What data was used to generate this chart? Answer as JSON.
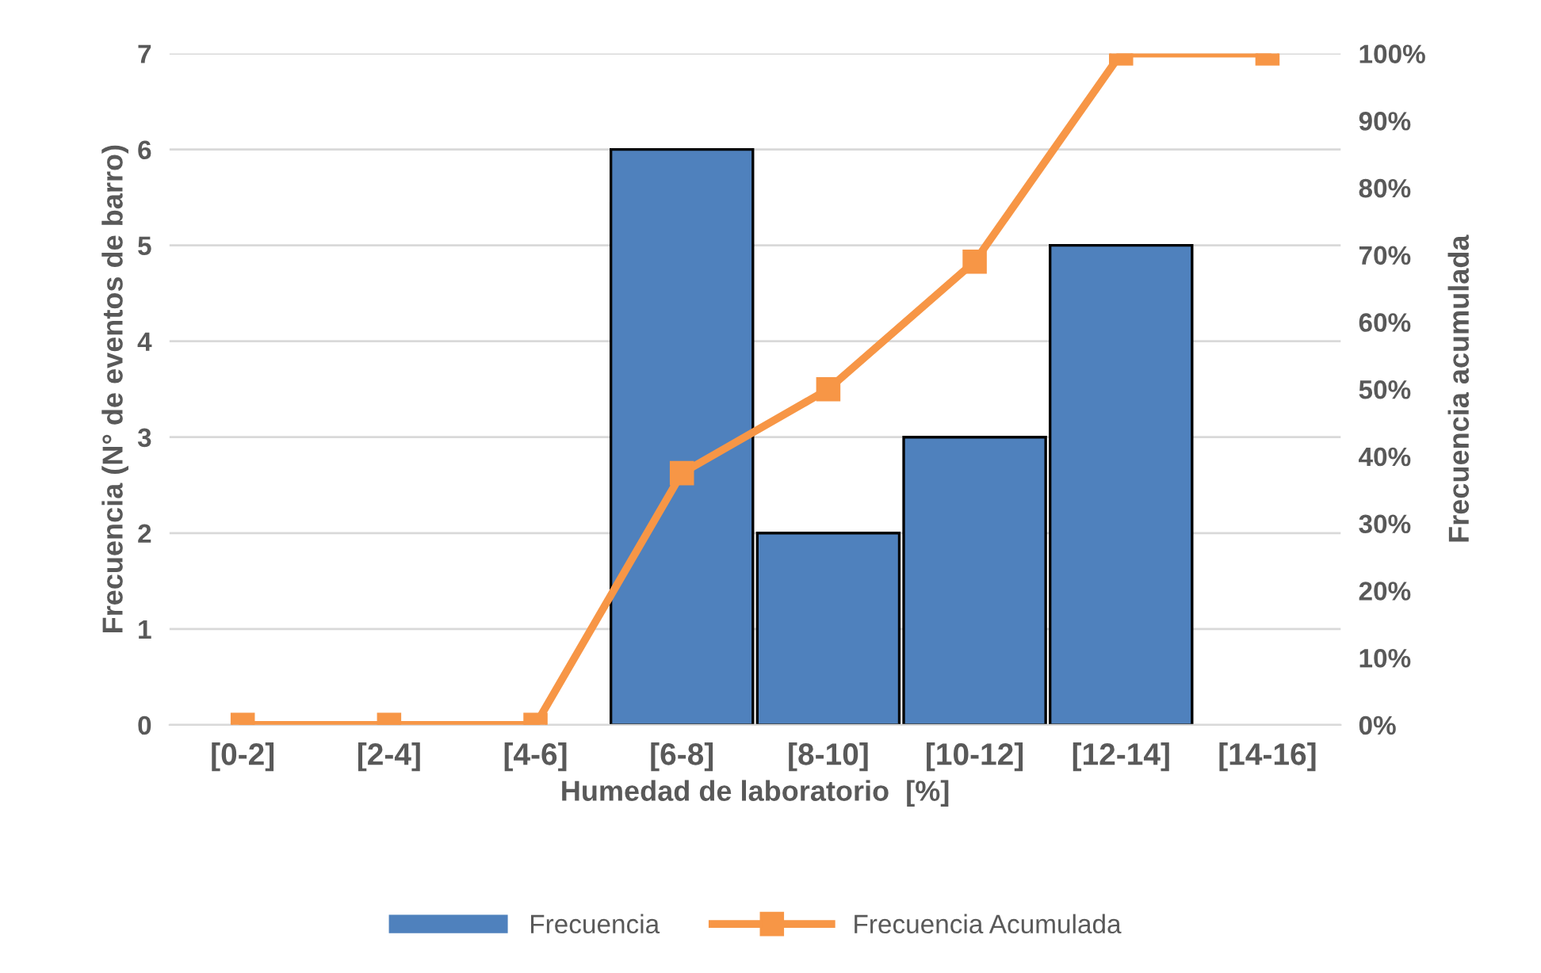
{
  "chart_data": {
    "type": "bar",
    "xlabel": "Humedad de laboratorio  [%]",
    "ylabel": "Frecuencia (N° de eventos de barro)",
    "y2label": "Frecuencia acumulada",
    "categories": [
      "[0-2]",
      "[2-4]",
      "[4-6]",
      "[6-8]",
      "[8-10]",
      "[10-12]",
      "[12-14]",
      "[14-16]"
    ],
    "series": [
      {
        "name": "Frecuencia",
        "color": "#4f81bd",
        "values": [
          0,
          0,
          0,
          6,
          2,
          3,
          5,
          0
        ]
      },
      {
        "name": "Frecuencia Acumulada",
        "type": "line",
        "axis": "y2",
        "color": "#f79646",
        "marker": "square",
        "values": [
          0,
          0,
          0,
          37.5,
          50,
          69,
          100,
          100
        ]
      }
    ],
    "ylim": [
      0,
      7
    ],
    "yticks": [
      0,
      1,
      2,
      3,
      4,
      5,
      6,
      7
    ],
    "y2lim": [
      0,
      100
    ],
    "y2ticks": [
      {
        "value": 0,
        "label": "0%"
      },
      {
        "value": 10,
        "label": "10%"
      },
      {
        "value": 20,
        "label": "20%"
      },
      {
        "value": 30,
        "label": "30%"
      },
      {
        "value": 40,
        "label": "40%"
      },
      {
        "value": 50,
        "label": "50%"
      },
      {
        "value": 60,
        "label": "60%"
      },
      {
        "value": 70,
        "label": "70%"
      },
      {
        "value": 80,
        "label": "80%"
      },
      {
        "value": 90,
        "label": "90%"
      },
      {
        "value": 100,
        "label": "100%"
      }
    ],
    "grid": "y",
    "legend": "bottom"
  }
}
